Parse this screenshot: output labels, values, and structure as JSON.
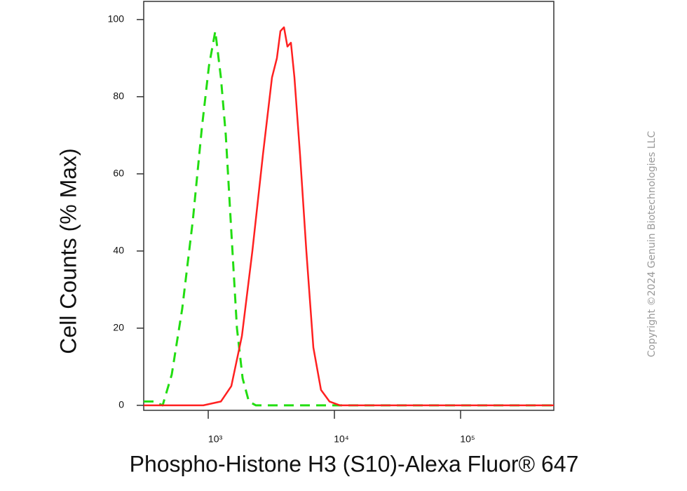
{
  "chart_data": {
    "type": "line",
    "xlabel": "Phospho-Histone H3 (S10)-Alexa Fluor® 647",
    "ylabel": "Cell Counts (% Max)",
    "annotation": "Copyright ©2024 Genuin Biotechnologies LLC",
    "xscale": "log",
    "xlim": [
      308,
      548000
    ],
    "ylim": [
      -1.3,
      104.7
    ],
    "xticks": [
      {
        "value": 1000,
        "label": "10³"
      },
      {
        "value": 10000,
        "label": "10⁴"
      },
      {
        "value": 100000,
        "label": "10⁵"
      }
    ],
    "yticks": [
      0,
      20,
      40,
      60,
      80,
      100
    ],
    "grid": false,
    "series": [
      {
        "color": "#22dd11",
        "dash": true,
        "x": [
          308,
          373,
          435,
          514,
          622,
          755,
          891,
          1013,
          1137,
          1259,
          1377,
          1525,
          1689,
          1872,
          2099,
          2387,
          13420,
          548000
        ],
        "values": [
          1,
          1,
          0,
          8,
          25,
          48,
          72,
          88,
          97,
          85,
          70,
          45,
          20,
          7,
          1,
          0,
          0,
          0
        ]
      },
      {
        "color": "#ff2020",
        "dash": false,
        "x": [
          308,
          914,
          1259,
          1525,
          1848,
          2237,
          2713,
          3201,
          3500,
          3731,
          3983,
          4244,
          4519,
          4820,
          5341,
          5995,
          6813,
          7831,
          9143,
          11070,
          548000
        ],
        "values": [
          0,
          0,
          1,
          5,
          18,
          40,
          65,
          85,
          90,
          97,
          98,
          93,
          94,
          85,
          65,
          40,
          15,
          4,
          1,
          0,
          0
        ]
      }
    ]
  }
}
